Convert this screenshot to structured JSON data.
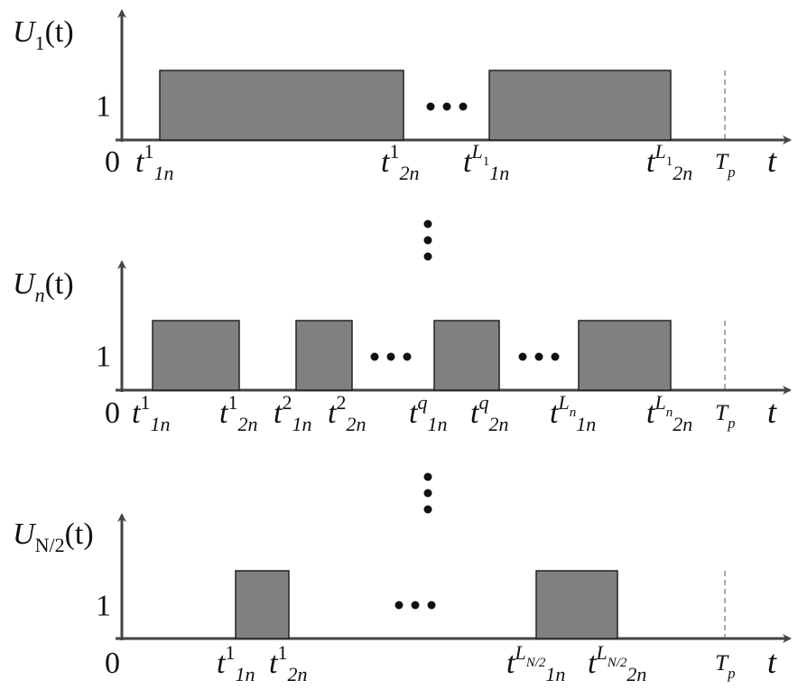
{
  "panels": [
    {
      "y_label": [
        {
          "text": "U",
          "pos": "base"
        },
        {
          "text": "1",
          "pos": "sub"
        },
        {
          "text": "(t)",
          "pos": "base"
        }
      ],
      "level": "1",
      "zero": "0",
      "axis_label": "t",
      "period": [
        {
          "text": "T",
          "pos": "base"
        },
        {
          "text": "p",
          "pos": "sub"
        }
      ],
      "ticks": [
        [
          {
            "text": "t",
            "pos": "base"
          },
          {
            "text": "1",
            "pos": "sup"
          },
          {
            "text": "1n",
            "pos": "sub"
          }
        ],
        [
          {
            "text": "t",
            "pos": "base"
          },
          {
            "text": "1",
            "pos": "sup"
          },
          {
            "text": "2n",
            "pos": "sub"
          }
        ],
        [
          {
            "text": "t",
            "pos": "base"
          },
          {
            "text": "L",
            "pos": "sup"
          },
          {
            "text": "1",
            "pos": "supsub"
          },
          {
            "text": "1n",
            "pos": "sub"
          }
        ],
        [
          {
            "text": "t",
            "pos": "base"
          },
          {
            "text": "L",
            "pos": "sup"
          },
          {
            "text": "1",
            "pos": "supsub"
          },
          {
            "text": "2n",
            "pos": "sub"
          }
        ]
      ]
    },
    {
      "y_label": [
        {
          "text": "U",
          "pos": "base"
        },
        {
          "text": "n",
          "pos": "sub"
        },
        {
          "text": "(t)",
          "pos": "base"
        }
      ],
      "level": "1",
      "zero": "0",
      "axis_label": "t",
      "period": [
        {
          "text": "T",
          "pos": "base"
        },
        {
          "text": "p",
          "pos": "sub"
        }
      ],
      "ticks": [
        [
          {
            "text": "t",
            "pos": "base"
          },
          {
            "text": "1",
            "pos": "sup"
          },
          {
            "text": "1n",
            "pos": "sub"
          }
        ],
        [
          {
            "text": "t",
            "pos": "base"
          },
          {
            "text": "1",
            "pos": "sup"
          },
          {
            "text": "2n",
            "pos": "sub"
          }
        ],
        [
          {
            "text": "t",
            "pos": "base"
          },
          {
            "text": "2",
            "pos": "sup"
          },
          {
            "text": "1n",
            "pos": "sub"
          }
        ],
        [
          {
            "text": "t",
            "pos": "base"
          },
          {
            "text": "2",
            "pos": "sup"
          },
          {
            "text": "2n",
            "pos": "sub"
          }
        ],
        [
          {
            "text": "t",
            "pos": "base"
          },
          {
            "text": "q",
            "pos": "sup"
          },
          {
            "text": "1n",
            "pos": "sub"
          }
        ],
        [
          {
            "text": "t",
            "pos": "base"
          },
          {
            "text": "q",
            "pos": "sup"
          },
          {
            "text": "2n",
            "pos": "sub"
          }
        ],
        [
          {
            "text": "t",
            "pos": "base"
          },
          {
            "text": "L",
            "pos": "sup"
          },
          {
            "text": "n",
            "pos": "supsub"
          },
          {
            "text": "1n",
            "pos": "sub"
          }
        ],
        [
          {
            "text": "t",
            "pos": "base"
          },
          {
            "text": "L",
            "pos": "sup"
          },
          {
            "text": "n",
            "pos": "supsub"
          },
          {
            "text": "2n",
            "pos": "sub"
          }
        ]
      ]
    },
    {
      "y_label": [
        {
          "text": "U",
          "pos": "base"
        },
        {
          "text": "N/2",
          "pos": "sub"
        },
        {
          "text": "(t)",
          "pos": "base"
        }
      ],
      "level": "1",
      "zero": "0",
      "axis_label": "t",
      "period": [
        {
          "text": "T",
          "pos": "base"
        },
        {
          "text": "p",
          "pos": "sub"
        }
      ],
      "ticks": [
        [
          {
            "text": "t",
            "pos": "base"
          },
          {
            "text": "1",
            "pos": "sup"
          },
          {
            "text": "1n",
            "pos": "sub"
          }
        ],
        [
          {
            "text": "t",
            "pos": "base"
          },
          {
            "text": "1",
            "pos": "sup"
          },
          {
            "text": "2n",
            "pos": "sub"
          }
        ],
        [
          {
            "text": "t",
            "pos": "base"
          },
          {
            "text": "L",
            "pos": "sup"
          },
          {
            "text": "N/2",
            "pos": "supsub"
          },
          {
            "text": "1n",
            "pos": "sub"
          }
        ],
        [
          {
            "text": "t",
            "pos": "base"
          },
          {
            "text": "L",
            "pos": "sup"
          },
          {
            "text": "N/2",
            "pos": "supsub"
          },
          {
            "text": "2n",
            "pos": "sub"
          }
        ]
      ]
    }
  ]
}
